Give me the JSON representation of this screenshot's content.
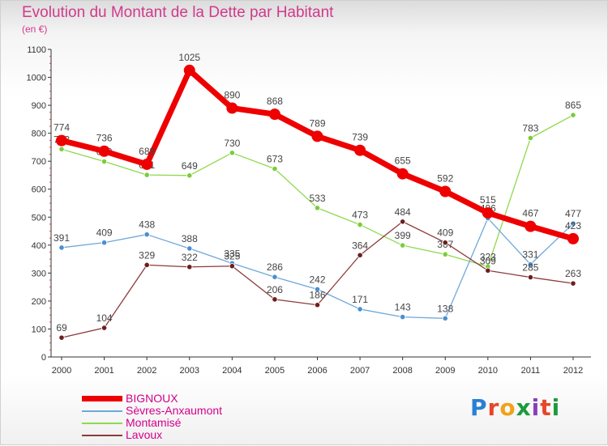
{
  "header": {
    "title": "Evolution du Montant de la Dette par Habitant",
    "unit": "(en €)"
  },
  "logo": {
    "text": "Proxiti",
    "letter_colors": [
      "#2a7fd4",
      "#e6462a",
      "#f0a21c",
      "#1c9b3c",
      "#8a3fb8",
      "#e6462a",
      "#1c9b3c"
    ]
  },
  "chart_data": {
    "type": "line",
    "x": [
      2000,
      2001,
      2002,
      2003,
      2004,
      2005,
      2006,
      2007,
      2008,
      2009,
      2010,
      2011,
      2012
    ],
    "ylim": [
      0,
      1100
    ],
    "yticks": [
      0,
      100,
      200,
      300,
      400,
      500,
      600,
      700,
      800,
      900,
      1000,
      1100
    ],
    "grid": false,
    "legend_position": "bottom-left",
    "series": [
      {
        "name": "Montamisé",
        "color": "#8fd94f",
        "marker_color": "#7ccc3a",
        "values": [
          743,
          699,
          651,
          649,
          730,
          673,
          533,
          473,
          399,
          367,
          323,
          783,
          865
        ]
      },
      {
        "name": "Sèvres-Anxaumont",
        "color": "#6fa8d8",
        "marker_color": "#4a8fd0",
        "values": [
          391,
          409,
          438,
          388,
          335,
          286,
          242,
          171,
          143,
          138,
          496,
          331,
          477
        ]
      },
      {
        "name": "Lavoux",
        "color": "#8b3a3a",
        "marker_color": "#6b1f1f",
        "values": [
          69,
          104,
          329,
          322,
          325,
          206,
          186,
          364,
          484,
          409,
          309,
          285,
          263
        ]
      },
      {
        "name": "BIGNOUX",
        "color": "#ee0000",
        "marker_color": "#ee0000",
        "values": [
          774,
          736,
          689,
          1025,
          890,
          868,
          789,
          739,
          655,
          592,
          515,
          467,
          423
        ]
      }
    ]
  },
  "legend": {
    "items": [
      {
        "label": "BIGNOUX",
        "color": "#ee0000",
        "text_color": "#d4008c"
      },
      {
        "label": "Sèvres-Anxaumont",
        "color": "#6fa8d8",
        "text_color": "#d4008c"
      },
      {
        "label": "Montamisé",
        "color": "#8fd94f",
        "text_color": "#d4008c"
      },
      {
        "label": "Lavoux",
        "color": "#8b3a3a",
        "text_color": "#d4008c"
      }
    ]
  }
}
